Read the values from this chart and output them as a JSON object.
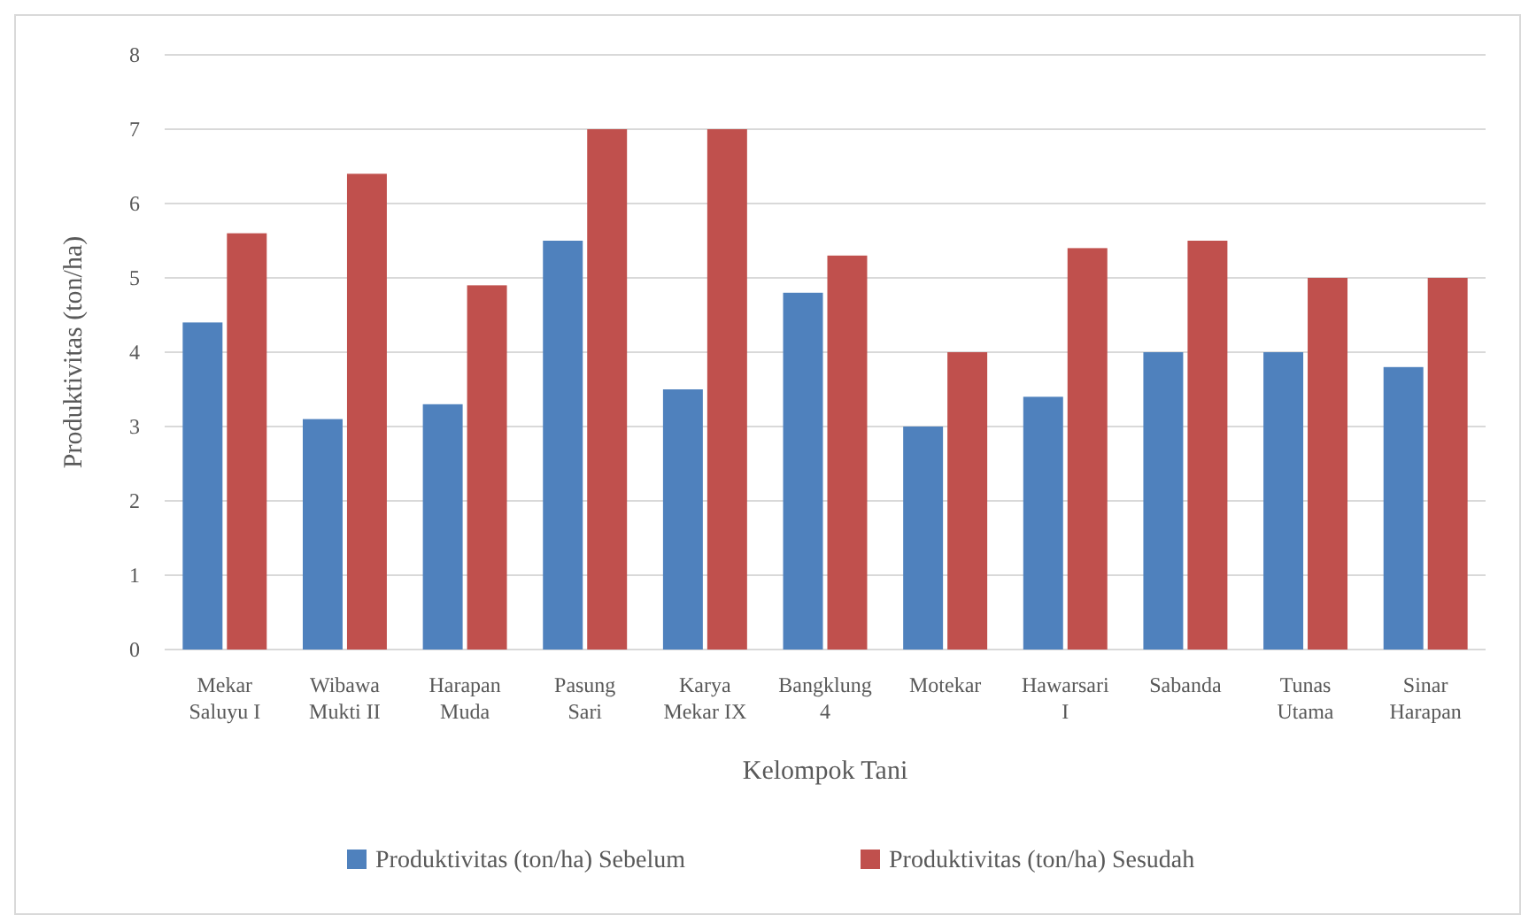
{
  "chart_data": {
    "type": "bar",
    "xlabel": "Kelompok Tani",
    "ylabel": "Produktivitas (ton/ha)",
    "categories": [
      "Mekar Saluyu I",
      "Wibawa Mukti II",
      "Harapan Muda",
      "Pasung Sari",
      "Karya Mekar IX",
      "Bangklung 4",
      "Motekar",
      "Hawarsari I",
      "Sabanda",
      "Tunas Utama",
      "Sinar Harapan"
    ],
    "series": [
      {
        "name": "Produktivitas (ton/ha) Sebelum",
        "color": "#4f81bd",
        "values": [
          4.4,
          3.1,
          3.3,
          5.5,
          3.5,
          4.8,
          3.0,
          3.4,
          4.0,
          4.0,
          3.8
        ]
      },
      {
        "name": "Produktivitas (ton/ha) Sesudah",
        "color": "#c0504d",
        "values": [
          5.6,
          6.4,
          4.9,
          7.0,
          7.0,
          5.3,
          4.0,
          5.4,
          5.5,
          5.0,
          5.0
        ]
      }
    ],
    "ylim": [
      0,
      8
    ],
    "yticks": [
      0,
      1,
      2,
      3,
      4,
      5,
      6,
      7,
      8
    ],
    "grid": "y",
    "legend": "bottom"
  }
}
